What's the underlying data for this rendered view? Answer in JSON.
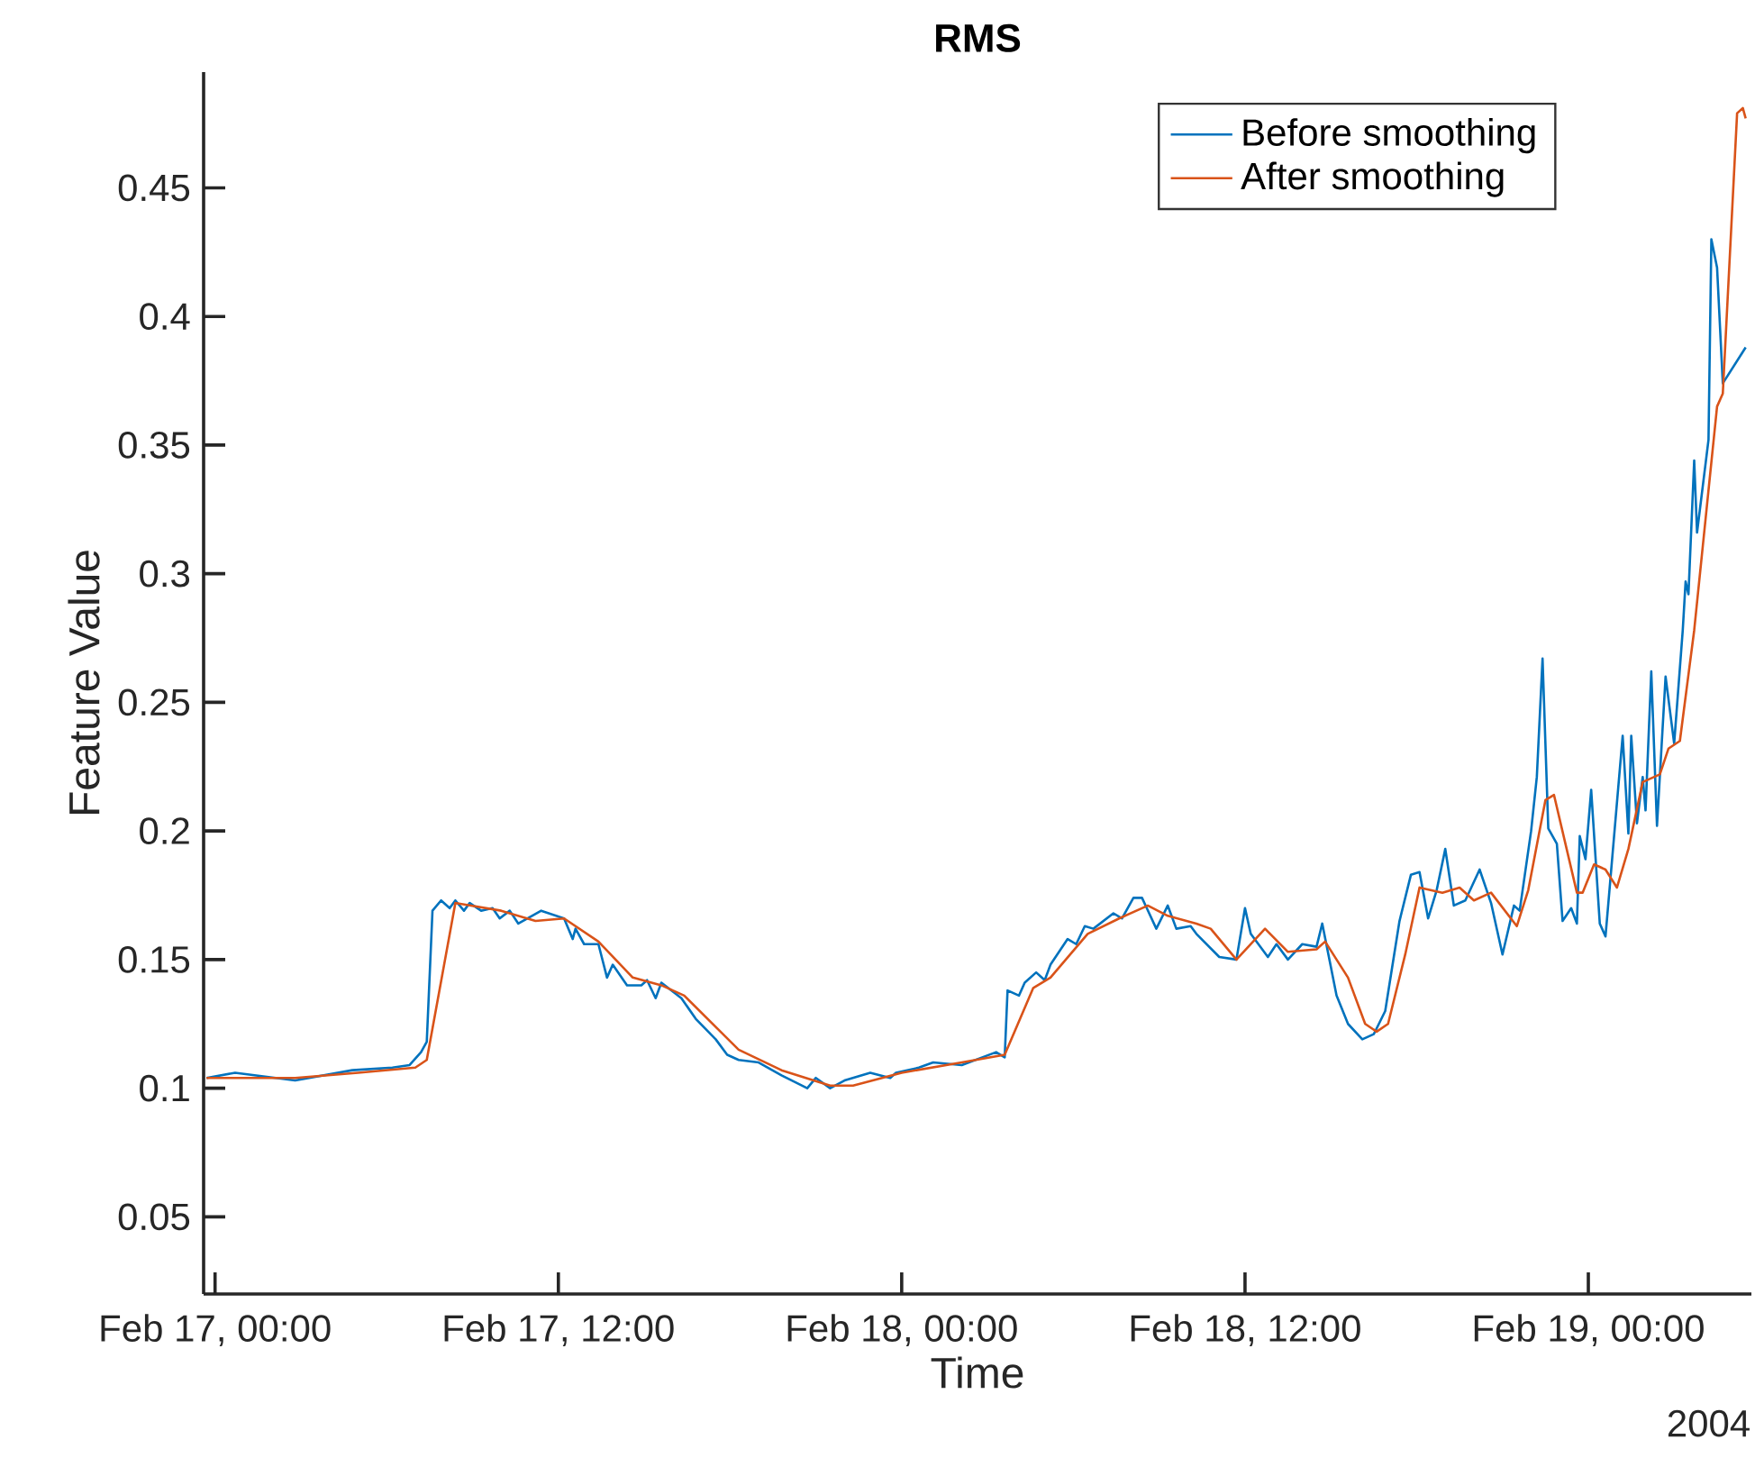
{
  "chart_data": {
    "type": "line",
    "title": "RMS",
    "xlabel": "Time",
    "ylabel": "Feature Value",
    "annotations": [
      "2004"
    ],
    "xlim": [
      "2004-02-16T23:36",
      "2004-02-19T05:42"
    ],
    "ylim": [
      0.02,
      0.495
    ],
    "xticks": [
      {
        "value": "2004-02-17T00:00",
        "label": "Feb 17, 00:00"
      },
      {
        "value": "2004-02-17T12:00",
        "label": "Feb 17, 12:00"
      },
      {
        "value": "2004-02-18T00:00",
        "label": "Feb 18, 00:00"
      },
      {
        "value": "2004-02-18T12:00",
        "label": "Feb 18, 12:00"
      },
      {
        "value": "2004-02-19T00:00",
        "label": "Feb 19, 00:00"
      }
    ],
    "yticks": [
      0.05,
      0.1,
      0.15,
      0.2,
      0.25,
      0.3,
      0.35,
      0.4,
      0.45
    ],
    "legend": "top right",
    "marker": "none",
    "line_style": "solid",
    "series": [
      {
        "name": "Before smoothing",
        "color": "#0072bd",
        "x": [
          "2004-02-16T23:42",
          "2004-02-17T00:42",
          "2004-02-17T02:48",
          "2004-02-17T04:48",
          "2004-02-17T06:12",
          "2004-02-17T06:48",
          "2004-02-17T07:12",
          "2004-02-17T07:24",
          "2004-02-17T07:36",
          "2004-02-17T07:54",
          "2004-02-17T08:12",
          "2004-02-17T08:24",
          "2004-02-17T08:42",
          "2004-02-17T08:54",
          "2004-02-17T09:18",
          "2004-02-17T09:42",
          "2004-02-17T09:57",
          "2004-02-17T10:18",
          "2004-02-17T10:36",
          "2004-02-17T11:24",
          "2004-02-17T12:12",
          "2004-02-17T12:30",
          "2004-02-17T12:36",
          "2004-02-17T12:54",
          "2004-02-17T13:24",
          "2004-02-17T13:42",
          "2004-02-17T13:54",
          "2004-02-17T14:24",
          "2004-02-17T14:54",
          "2004-02-17T15:06",
          "2004-02-17T15:24",
          "2004-02-17T15:36",
          "2004-02-17T16:18",
          "2004-02-17T16:48",
          "2004-02-17T17:30",
          "2004-02-17T17:54",
          "2004-02-17T18:18",
          "2004-02-17T19:00",
          "2004-02-17T19:48",
          "2004-02-17T20:42",
          "2004-02-17T21:00",
          "2004-02-17T21:30",
          "2004-02-17T22:00",
          "2004-02-17T22:54",
          "2004-02-17T23:36",
          "2004-02-17T23:48",
          "2004-02-18T00:36",
          "2004-02-18T01:06",
          "2004-02-18T02:06",
          "2004-02-18T03:18",
          "2004-02-18T03:36",
          "2004-02-18T03:42",
          "2004-02-18T04:06",
          "2004-02-18T04:18",
          "2004-02-18T04:42",
          "2004-02-18T05:00",
          "2004-02-18T05:12",
          "2004-02-18T05:48",
          "2004-02-18T06:06",
          "2004-02-18T06:24",
          "2004-02-18T06:42",
          "2004-02-18T07:24",
          "2004-02-18T07:42",
          "2004-02-18T08:06",
          "2004-02-18T08:24",
          "2004-02-18T08:54",
          "2004-02-18T09:18",
          "2004-02-18T09:36",
          "2004-02-18T10:06",
          "2004-02-18T10:18",
          "2004-02-18T11:06",
          "2004-02-18T11:42",
          "2004-02-18T12:00",
          "2004-02-18T12:12",
          "2004-02-18T12:48",
          "2004-02-18T13:06",
          "2004-02-18T13:30",
          "2004-02-18T14:00",
          "2004-02-18T14:30",
          "2004-02-18T14:42",
          "2004-02-18T15:12",
          "2004-02-18T15:36",
          "2004-02-18T16:06",
          "2004-02-18T16:30",
          "2004-02-18T16:54",
          "2004-02-18T17:24",
          "2004-02-18T17:48",
          "2004-02-18T18:06",
          "2004-02-18T18:24",
          "2004-02-18T18:42",
          "2004-02-18T19:00",
          "2004-02-18T19:18",
          "2004-02-18T19:42",
          "2004-02-18T20:12",
          "2004-02-18T20:36",
          "2004-02-18T21:00",
          "2004-02-18T21:24",
          "2004-02-18T21:36",
          "2004-02-18T22:00",
          "2004-02-18T22:12",
          "2004-02-18T22:24",
          "2004-02-18T22:36",
          "2004-02-18T22:54",
          "2004-02-18T23:06",
          "2004-02-18T23:24",
          "2004-02-18T23:36",
          "2004-02-18T23:42",
          "2004-02-18T23:54",
          "2004-02-19T00:06",
          "2004-02-19T00:24",
          "2004-02-19T00:36",
          "2004-02-19T01:12",
          "2004-02-19T01:24",
          "2004-02-19T01:30",
          "2004-02-19T01:42",
          "2004-02-19T01:54",
          "2004-02-19T02:00",
          "2004-02-19T02:12",
          "2004-02-19T02:24",
          "2004-02-19T02:42",
          "2004-02-19T03:00",
          "2004-02-19T03:18",
          "2004-02-19T03:24",
          "2004-02-19T03:30",
          "2004-02-19T03:42",
          "2004-02-19T03:48",
          "2004-02-19T04:12",
          "2004-02-19T04:18",
          "2004-02-19T04:30",
          "2004-02-19T04:42",
          "2004-02-19T04:54",
          "2004-02-19T05:18",
          "2004-02-19T05:30"
        ],
        "values": [
          0.104,
          0.106,
          0.103,
          0.107,
          0.108,
          0.109,
          0.114,
          0.118,
          0.169,
          0.173,
          0.17,
          0.173,
          0.169,
          0.172,
          0.169,
          0.17,
          0.166,
          0.169,
          0.164,
          0.169,
          0.166,
          0.158,
          0.162,
          0.156,
          0.156,
          0.143,
          0.148,
          0.14,
          0.14,
          0.142,
          0.135,
          0.141,
          0.135,
          0.127,
          0.119,
          0.113,
          0.111,
          0.11,
          0.105,
          0.1,
          0.104,
          0.1,
          0.103,
          0.106,
          0.104,
          0.106,
          0.108,
          0.11,
          0.109,
          0.114,
          0.112,
          0.138,
          0.136,
          0.141,
          0.145,
          0.142,
          0.148,
          0.158,
          0.156,
          0.163,
          0.162,
          0.168,
          0.166,
          0.174,
          0.174,
          0.162,
          0.171,
          0.162,
          0.163,
          0.16,
          0.151,
          0.15,
          0.17,
          0.16,
          0.151,
          0.156,
          0.15,
          0.156,
          0.155,
          0.164,
          0.136,
          0.125,
          0.119,
          0.121,
          0.13,
          0.165,
          0.183,
          0.184,
          0.166,
          0.177,
          0.193,
          0.171,
          0.173,
          0.185,
          0.172,
          0.152,
          0.171,
          0.169,
          0.2,
          0.221,
          0.267,
          0.201,
          0.195,
          0.165,
          0.17,
          0.164,
          0.198,
          0.189,
          0.216,
          0.164,
          0.159,
          0.237,
          0.199,
          0.237,
          0.203,
          0.221,
          0.208,
          0.262,
          0.202,
          0.26,
          0.234,
          0.278,
          0.297,
          0.292,
          0.344,
          0.316,
          0.352,
          0.43,
          0.419,
          0.374,
          null,
          null,
          0.388
        ]
      },
      {
        "name": "After smoothing",
        "color": "#d95319",
        "x": [
          "2004-02-16T23:42",
          "2004-02-17T02:48",
          "2004-02-17T05:00",
          "2004-02-17T07:00",
          "2004-02-17T07:24",
          "2004-02-17T08:24",
          "2004-02-17T10:00",
          "2004-02-17T11:12",
          "2004-02-17T12:12",
          "2004-02-17T13:24",
          "2004-02-17T14:36",
          "2004-02-17T15:36",
          "2004-02-17T16:24",
          "2004-02-17T18:18",
          "2004-02-17T19:48",
          "2004-02-17T21:30",
          "2004-02-17T22:18",
          "2004-02-18T00:00",
          "2004-02-18T02:06",
          "2004-02-18T03:36",
          "2004-02-18T04:36",
          "2004-02-18T05:12",
          "2004-02-18T06:30",
          "2004-02-18T07:36",
          "2004-02-18T08:36",
          "2004-02-18T09:18",
          "2004-02-18T10:18",
          "2004-02-18T10:48",
          "2004-02-18T11:42",
          "2004-02-18T12:42",
          "2004-02-18T13:30",
          "2004-02-18T14:30",
          "2004-02-18T14:48",
          "2004-02-18T15:36",
          "2004-02-18T16:12",
          "2004-02-18T16:36",
          "2004-02-18T17:00",
          "2004-02-18T17:36",
          "2004-02-18T18:06",
          "2004-02-18T18:54",
          "2004-02-18T19:30",
          "2004-02-18T20:00",
          "2004-02-18T20:36",
          "2004-02-18T21:30",
          "2004-02-18T21:54",
          "2004-02-18T22:30",
          "2004-02-18T22:48",
          "2004-02-18T23:12",
          "2004-02-18T23:36",
          "2004-02-18T23:48",
          "2004-02-19T00:12",
          "2004-02-19T00:36",
          "2004-02-19T01:00",
          "2004-02-19T01:24",
          "2004-02-19T01:54",
          "2004-02-19T02:30",
          "2004-02-19T02:48",
          "2004-02-19T03:12",
          "2004-02-19T03:42",
          "2004-02-19T04:30",
          "2004-02-19T04:42",
          "2004-02-19T05:12",
          "2004-02-19T05:24",
          "2004-02-19T05:30"
        ],
        "values": [
          0.104,
          0.104,
          0.106,
          0.108,
          0.111,
          0.172,
          0.169,
          0.165,
          0.166,
          0.157,
          0.143,
          0.14,
          0.136,
          0.115,
          0.107,
          0.101,
          0.101,
          0.106,
          0.11,
          0.113,
          0.139,
          0.143,
          0.16,
          0.166,
          0.171,
          0.167,
          0.164,
          0.162,
          0.15,
          0.162,
          0.153,
          0.154,
          0.157,
          0.143,
          0.125,
          0.122,
          0.125,
          0.152,
          0.178,
          0.176,
          0.178,
          0.173,
          0.176,
          0.163,
          0.177,
          0.212,
          0.214,
          0.195,
          0.176,
          0.176,
          0.187,
          0.185,
          0.178,
          0.193,
          0.219,
          0.222,
          0.232,
          0.235,
          0.278,
          0.365,
          0.37,
          0.479,
          0.481,
          0.477
        ]
      }
    ]
  }
}
